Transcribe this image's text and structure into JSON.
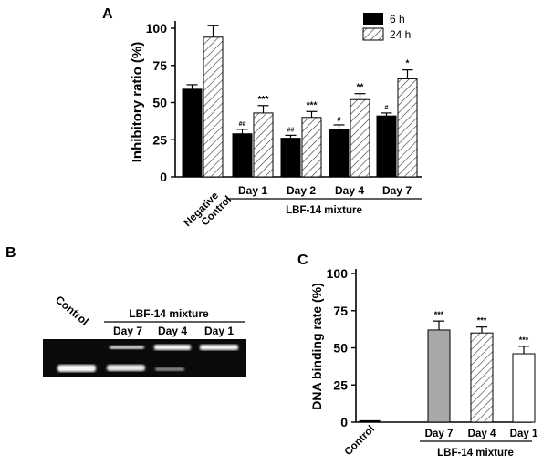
{
  "panel_labels": {
    "a": "A",
    "b": "B",
    "c": "C"
  },
  "legend": {
    "items": [
      {
        "label": "6 h",
        "pattern": "solid-black"
      },
      {
        "label": "24 h",
        "pattern": "hatch"
      }
    ]
  },
  "chart_data": [
    {
      "panel": "A",
      "type": "bar",
      "ylabel": "Inhibitory  ratio (%)",
      "ylim": [
        0,
        110
      ],
      "yticks": [
        0,
        25,
        50,
        75,
        100
      ],
      "categories": [
        "Negative Control",
        "Day 1",
        "Day 2",
        "Day 4",
        "Day 7"
      ],
      "category_lines": [
        [
          "Negative",
          "Control"
        ],
        [
          "Day 1"
        ],
        [
          "Day 2"
        ],
        [
          "Day 4"
        ],
        [
          "Day 7"
        ]
      ],
      "group_label": "LBF-14 mixture",
      "series": [
        {
          "name": "6 h",
          "values": [
            59,
            29,
            26,
            32,
            41
          ],
          "errors": [
            3,
            3,
            2,
            3,
            2
          ],
          "annotations": [
            "",
            "##",
            "##",
            "#",
            "#"
          ]
        },
        {
          "name": "24 h",
          "values": [
            94,
            43,
            40,
            52,
            66
          ],
          "errors": [
            8,
            5,
            4,
            4,
            6
          ],
          "annotations": [
            "",
            "***",
            "***",
            "**",
            "*"
          ]
        }
      ]
    },
    {
      "panel": "B",
      "type": "gel",
      "control_label": "Control",
      "group_label": "LBF-14 mixture",
      "lanes": [
        "Control",
        "Day 7",
        "Day 4",
        "Day 1"
      ],
      "lane_labels": [
        "Day 7",
        "Day 4",
        "Day 1"
      ]
    },
    {
      "panel": "C",
      "type": "bar",
      "ylabel": "DNA binding rate (%)",
      "ylim": [
        0,
        105
      ],
      "yticks": [
        0,
        25,
        50,
        75,
        100
      ],
      "categories": [
        "Control",
        "Day 7",
        "Day 4",
        "Day 1"
      ],
      "group_label": "LBF-14 mixture",
      "values": [
        1,
        62,
        60,
        46
      ],
      "errors": [
        0.5,
        6,
        4,
        5
      ],
      "annotations": [
        "",
        "***",
        "***",
        "***"
      ],
      "fills": [
        "black",
        "gray",
        "hatch",
        "white"
      ]
    }
  ]
}
